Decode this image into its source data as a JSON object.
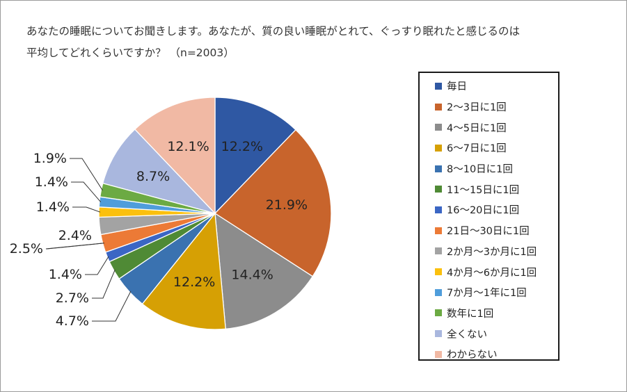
{
  "title_lines": [
    "あなたの睡眠についてお聞きします。あなたが、質の良い睡眠がとれて、ぐっすり眠れたと感じるのは",
    "平均してどれくらいですか？ （n=2003）"
  ],
  "chart_data": {
    "type": "pie",
    "title": "あなたの睡眠についてお聞きします。あなたが、質の良い睡眠がとれて、ぐっすり眠れたと感じるのは平均してどれくらいですか？ （n=2003）",
    "unit": "%",
    "legend_position": "right",
    "start_angle": "12 o'clock, clockwise",
    "slices": [
      {
        "label": "毎日",
        "value": 12.2,
        "display": "12.2%",
        "color": "#2f58a3"
      },
      {
        "label": "2～3日に1回",
        "value": 21.9,
        "display": "21.9%",
        "color": "#c8642c"
      },
      {
        "label": "4～5日に1回",
        "value": 14.4,
        "display": "14.4%",
        "color": "#8c8c8c"
      },
      {
        "label": "6～7日に1回",
        "value": 12.2,
        "display": "12.2%",
        "color": "#d6a004"
      },
      {
        "label": "8～10日に1回",
        "value": 4.7,
        "display": "4.7%",
        "color": "#3a72b0"
      },
      {
        "label": "11～15日に1回",
        "value": 2.7,
        "display": "2.7%",
        "color": "#4f8a35"
      },
      {
        "label": "16～20日に1回",
        "value": 1.4,
        "display": "1.4%",
        "color": "#3b66c4"
      },
      {
        "label": "21日～30日に1回",
        "value": 2.5,
        "display": "2.5%",
        "color": "#ec7a36"
      },
      {
        "label": "2か月～3か月に1回",
        "value": 2.4,
        "display": "2.4%",
        "color": "#a3a3a3"
      },
      {
        "label": "4か月～6か月に1回",
        "value": 1.4,
        "display": "1.4%",
        "color": "#fbc00e"
      },
      {
        "label": "7か月～1年に1回",
        "value": 1.4,
        "display": "1.4%",
        "color": "#4f9ddb"
      },
      {
        "label": "数年に1回",
        "value": 1.9,
        "display": "1.9%",
        "color": "#6caa43"
      },
      {
        "label": "全くない",
        "value": 8.7,
        "display": "8.7%",
        "color": "#a9b7de"
      },
      {
        "label": "わからない",
        "value": 12.1,
        "display": "12.1%",
        "color": "#f1b9a4"
      }
    ]
  }
}
